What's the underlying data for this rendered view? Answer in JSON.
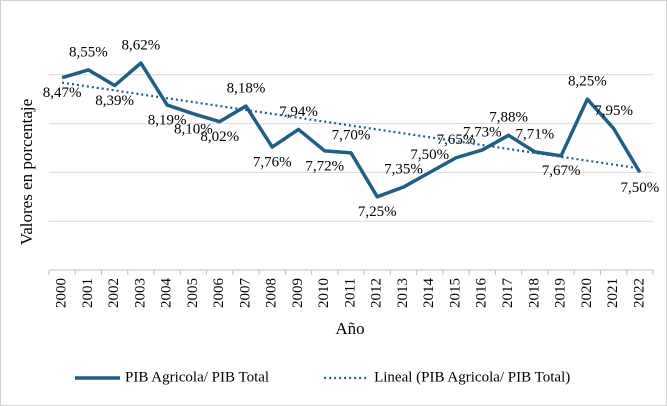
{
  "chart_data": {
    "type": "line",
    "x_label": "Año",
    "y_label": "Valores en porcentaje",
    "categories": [
      "2000",
      "2001",
      "2002",
      "2003",
      "2004",
      "2005",
      "2006",
      "2007",
      "2008",
      "2009",
      "2010",
      "2011",
      "2012",
      "2013",
      "2014",
      "2015",
      "2016",
      "2017",
      "2018",
      "2019",
      "2020",
      "2021",
      "2022"
    ],
    "series": [
      {
        "name": "PIB Agricola/ PIB Total",
        "color": "#1f5f85",
        "style": "solid",
        "values": [
          8.47,
          8.55,
          8.39,
          8.62,
          8.19,
          8.1,
          8.02,
          8.18,
          7.76,
          7.94,
          7.72,
          7.7,
          7.25,
          7.35,
          7.5,
          7.65,
          7.73,
          7.88,
          7.71,
          7.67,
          8.25,
          7.95,
          7.5
        ],
        "value_labels": [
          "8,47%",
          "8,55%",
          "8,39%",
          "8,62%",
          "8,19%",
          "8,10%",
          "8,02%",
          "8,18%",
          "7,76%",
          "7,94%",
          "7,72%",
          "7,70%",
          "7,25%",
          "7,35%",
          "7,50%",
          "7,65%",
          "7,73%",
          "7,88%",
          "7,71%",
          "7,67%",
          "8,25%",
          "7,95%",
          "7,50%"
        ]
      },
      {
        "name": "Lineal (PIB Agricola/ PIB Total)",
        "color": "#1f5f85",
        "style": "dotted",
        "values": [
          8.42,
          8.38,
          8.34,
          8.3,
          8.26,
          8.22,
          8.18,
          8.14,
          8.1,
          8.06,
          8.02,
          7.98,
          7.94,
          7.9,
          7.86,
          7.82,
          7.78,
          7.74,
          7.7,
          7.66,
          7.62,
          7.58,
          7.54
        ]
      }
    ],
    "ylim": [
      6.5,
      9.0
    ],
    "yticks": [
      7.0,
      7.5,
      8.0,
      8.5
    ],
    "grid": true,
    "legend": "bottom"
  }
}
